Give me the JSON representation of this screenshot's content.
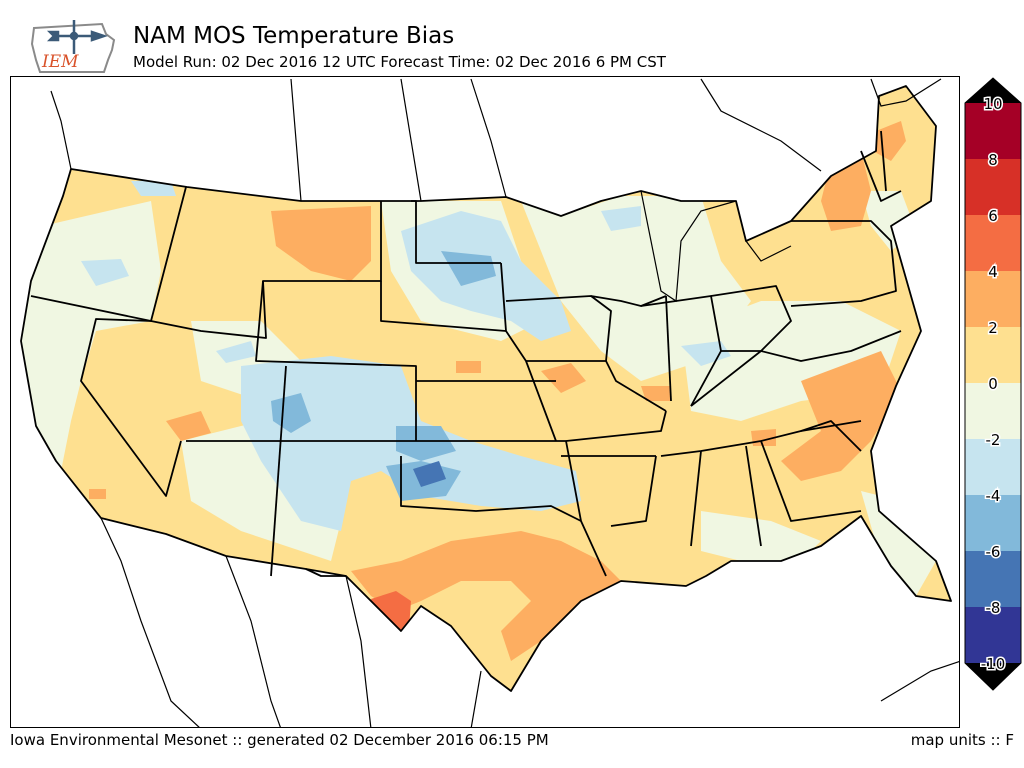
{
  "header": {
    "logo_text": "IEM",
    "title": "NAM MOS Temperature Bias",
    "subtitle": "Model Run: 02 Dec 2016 12 UTC Forecast Time: 02 Dec 2016 6 PM CST"
  },
  "footer": {
    "left": "Iowa Environmental Mesonet :: generated 02 December 2016 06:15 PM",
    "right": "map units :: F"
  },
  "map": {
    "region": "Continental United States",
    "variable": "Temperature Bias",
    "units": "F"
  },
  "colorbar": {
    "tick_labels": [
      "10",
      "8",
      "6",
      "4",
      "2",
      "0",
      "-2",
      "-4",
      "-6",
      "-8",
      "-10"
    ],
    "colors": {
      "over": "#000000",
      "under": "#000000",
      "b8_10": "#a50026",
      "b6_8": "#d73027",
      "b4_6": "#f46d43",
      "b2_4": "#fdae61",
      "b0_2": "#fee090",
      "bm2_0": "#f0f7e2",
      "bm4_m2": "#c6e4ef",
      "bm6_m4": "#82b9da",
      "bm8_m6": "#4575b4",
      "bm10_m8": "#313695"
    }
  }
}
